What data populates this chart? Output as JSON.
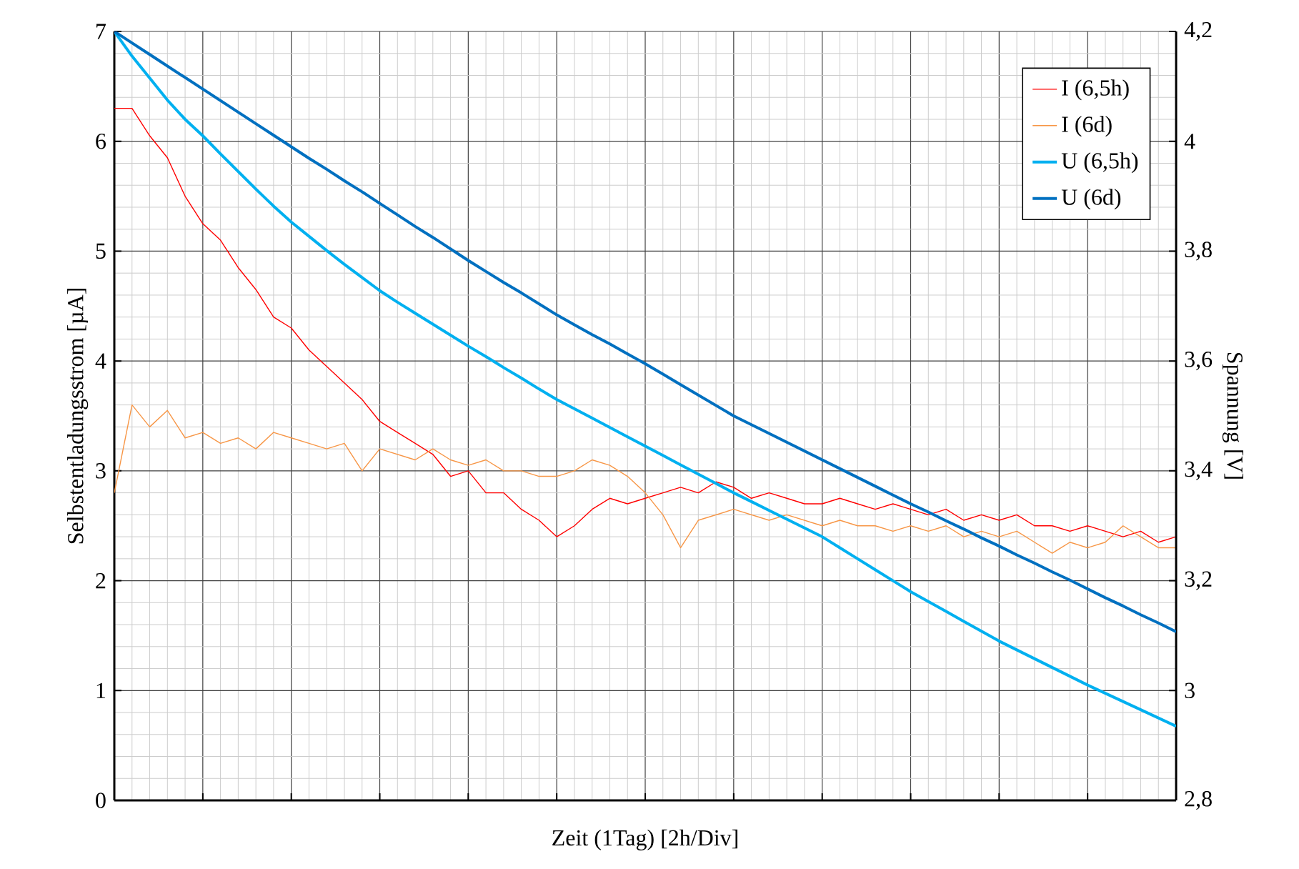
{
  "chart_data": {
    "type": "line",
    "xlabel": "Zeit (1Tag) [2h/Div]",
    "ylabel": "Selbstentladungsstrom [µA]",
    "y2label": "Spannung [V]",
    "categories": [
      null,
      null,
      null,
      null,
      null,
      null,
      null,
      null,
      null,
      null,
      null,
      null,
      null,
      null,
      null,
      null,
      null,
      null,
      null,
      null,
      null,
      null,
      null,
      null,
      null,
      null,
      null,
      null,
      null,
      null,
      null,
      null,
      null,
      null,
      null,
      null,
      null,
      null,
      null,
      null,
      null,
      null,
      null,
      null,
      null,
      null,
      null,
      null,
      null,
      null,
      null,
      null,
      null,
      null,
      null,
      null,
      null,
      null,
      null,
      null,
      null
    ],
    "ylim": [
      0,
      7
    ],
    "yticks": [
      0,
      1,
      2,
      3,
      4,
      5,
      6,
      7
    ],
    "y2lim": [
      2.8,
      4.2
    ],
    "y2ticks": [
      {
        "value": 2.8,
        "label": "2,8"
      },
      {
        "value": 3.0,
        "label": "3"
      },
      {
        "value": 3.2,
        "label": "3,2"
      },
      {
        "value": 3.4,
        "label": "3,4"
      },
      {
        "value": 3.6,
        "label": "3,6"
      },
      {
        "value": 3.8,
        "label": "3,8"
      },
      {
        "value": 4.0,
        "label": "4"
      },
      {
        "value": 4.2,
        "label": "4,2"
      }
    ],
    "tick_labels": "y",
    "grid": true,
    "legend": "top right",
    "marker": "none",
    "line_style": "solid",
    "series": [
      {
        "name": "I (6,5h)",
        "color": "#ff0000",
        "values": [
          6.3,
          6.3,
          6.05,
          5.85,
          5.5,
          5.25,
          5.1,
          4.85,
          4.65,
          4.4,
          4.3,
          4.1,
          3.95,
          3.8,
          3.65,
          3.45,
          3.35,
          3.25,
          3.15,
          2.95,
          3.0,
          2.8,
          2.8,
          2.65,
          2.55,
          2.4,
          2.5,
          2.65,
          2.75,
          2.7,
          2.75,
          2.8,
          2.85,
          2.8,
          2.9,
          2.85,
          2.75,
          2.8,
          2.75,
          2.7,
          2.7,
          2.75,
          2.7,
          2.65,
          2.7,
          2.65,
          2.6,
          2.65,
          2.55,
          2.6,
          2.55,
          2.6,
          2.5,
          2.5,
          2.45,
          2.5,
          2.45,
          2.4,
          2.45,
          2.35,
          2.4
        ]
      },
      {
        "name": "I (6d)",
        "color": "#f79646",
        "values": [
          2.8,
          3.6,
          3.4,
          3.55,
          3.3,
          3.35,
          3.25,
          3.3,
          3.2,
          3.35,
          3.3,
          3.25,
          3.2,
          3.25,
          3.0,
          3.2,
          3.15,
          3.1,
          3.2,
          3.1,
          3.05,
          3.1,
          3.0,
          3.0,
          2.95,
          2.95,
          3.0,
          3.1,
          3.05,
          2.95,
          2.8,
          2.6,
          2.3,
          2.55,
          2.6,
          2.65,
          2.6,
          2.55,
          2.6,
          2.55,
          2.5,
          2.55,
          2.5,
          2.5,
          2.45,
          2.5,
          2.45,
          2.5,
          2.4,
          2.45,
          2.4,
          2.45,
          2.35,
          2.25,
          2.35,
          2.3,
          2.35,
          2.5,
          2.4,
          2.3,
          2.3
        ]
      },
      {
        "name": "U (6,5h)",
        "color": "#00b0f0",
        "axis": "y2",
        "values": [
          4.2,
          4.155,
          4.115,
          4.075,
          4.04,
          4.01,
          3.977,
          3.945,
          3.913,
          3.882,
          3.853,
          3.827,
          3.801,
          3.776,
          3.752,
          3.728,
          3.707,
          3.687,
          3.667,
          3.647,
          3.627,
          3.608,
          3.588,
          3.569,
          3.549,
          3.53,
          3.513,
          3.496,
          3.479,
          3.462,
          3.445,
          3.428,
          3.411,
          3.394,
          3.377,
          3.36,
          3.344,
          3.328,
          3.312,
          3.296,
          3.28,
          3.26,
          3.24,
          3.22,
          3.2,
          3.18,
          3.162,
          3.144,
          3.126,
          3.108,
          3.09,
          3.074,
          3.058,
          3.042,
          3.026,
          3.01,
          2.995,
          2.98,
          2.965,
          2.95,
          2.935
        ]
      },
      {
        "name": "U (6d)",
        "color": "#0070c0",
        "axis": "y2",
        "values": [
          4.2,
          4.179,
          4.158,
          4.137,
          4.116,
          4.095,
          4.074,
          4.053,
          4.032,
          4.011,
          3.99,
          3.969,
          3.949,
          3.928,
          3.908,
          3.887,
          3.866,
          3.845,
          3.825,
          3.804,
          3.783,
          3.763,
          3.743,
          3.724,
          3.704,
          3.684,
          3.666,
          3.648,
          3.631,
          3.613,
          3.595,
          3.576,
          3.557,
          3.538,
          3.519,
          3.5,
          3.484,
          3.468,
          3.452,
          3.436,
          3.42,
          3.404,
          3.388,
          3.372,
          3.356,
          3.34,
          3.325,
          3.309,
          3.294,
          3.278,
          3.263,
          3.247,
          3.232,
          3.216,
          3.201,
          3.185,
          3.169,
          3.154,
          3.138,
          3.123,
          3.107
        ]
      }
    ]
  }
}
